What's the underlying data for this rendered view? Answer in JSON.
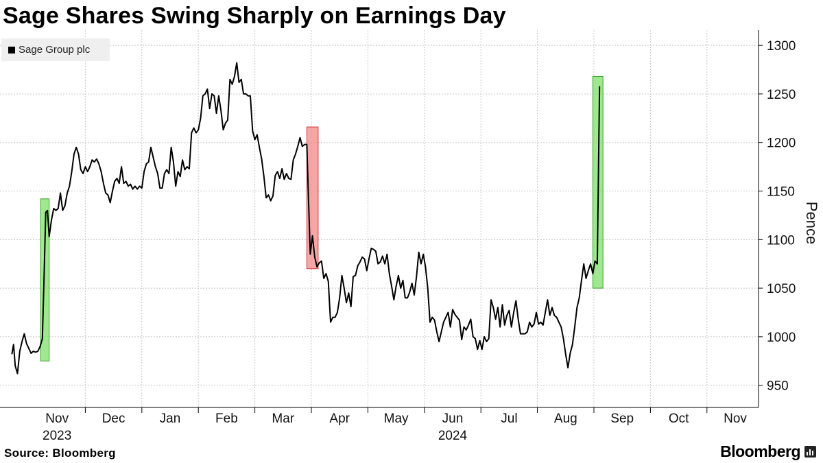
{
  "title": "Sage Shares Swing Sharply on Earnings Day",
  "legend": {
    "label": "Sage Group plc",
    "color": "#000000"
  },
  "source": "Source: Bloomberg",
  "brand": "Bloomberg",
  "brand_icon": "bloomberg-terminal-icon",
  "colors": {
    "line": "#000000",
    "up_highlight": "#7fe06a",
    "down_highlight": "#f28a8a",
    "grid": "#c8c8c8"
  },
  "chart_data": {
    "type": "line",
    "title": "Sage Shares Swing Sharply on Earnings Day",
    "xlabel": "",
    "ylabel": "Pence",
    "ylim": [
      930,
      1310
    ],
    "y_ticks": [
      950,
      1000,
      1050,
      1100,
      1150,
      1200,
      1250,
      1300
    ],
    "grid": true,
    "y_axis_side": "right",
    "legend_position": "top-left",
    "x_tick_labels": [
      {
        "label": "Nov",
        "year": "2023"
      },
      {
        "label": "Dec",
        "year": ""
      },
      {
        "label": "Jan",
        "year": ""
      },
      {
        "label": "Feb",
        "year": ""
      },
      {
        "label": "Mar",
        "year": ""
      },
      {
        "label": "Apr",
        "year": ""
      },
      {
        "label": "May",
        "year": ""
      },
      {
        "label": "Jun",
        "year": "2024"
      },
      {
        "label": "Jul",
        "year": ""
      },
      {
        "label": "Aug",
        "year": ""
      },
      {
        "label": "Sep",
        "year": ""
      },
      {
        "label": "Oct",
        "year": ""
      },
      {
        "label": "Nov",
        "year": ""
      }
    ],
    "series": [
      {
        "name": "Sage Group plc",
        "note": "x = months elapsed since start of Nov 2023 (0 = Nov 1, 2023)",
        "points": [
          [
            -0.3,
            982
          ],
          [
            -0.27,
            992
          ],
          [
            -0.24,
            970
          ],
          [
            -0.2,
            962
          ],
          [
            -0.16,
            985
          ],
          [
            -0.12,
            995
          ],
          [
            -0.08,
            1003
          ],
          [
            -0.04,
            993
          ],
          [
            0.0,
            988
          ],
          [
            0.04,
            983
          ],
          [
            0.08,
            985
          ],
          [
            0.12,
            984
          ],
          [
            0.16,
            985
          ],
          [
            0.2,
            990
          ],
          [
            0.24,
            998
          ],
          [
            0.27,
            1060
          ],
          [
            0.3,
            1128
          ],
          [
            0.33,
            1130
          ],
          [
            0.36,
            1103
          ],
          [
            0.4,
            1120
          ],
          [
            0.44,
            1132
          ],
          [
            0.48,
            1130
          ],
          [
            0.52,
            1132
          ],
          [
            0.56,
            1148
          ],
          [
            0.6,
            1130
          ],
          [
            0.64,
            1135
          ],
          [
            0.68,
            1148
          ],
          [
            0.72,
            1155
          ],
          [
            0.76,
            1170
          ],
          [
            0.8,
            1188
          ],
          [
            0.84,
            1195
          ],
          [
            0.88,
            1188
          ],
          [
            0.92,
            1172
          ],
          [
            0.96,
            1168
          ],
          [
            1.0,
            1175
          ],
          [
            1.04,
            1170
          ],
          [
            1.08,
            1175
          ],
          [
            1.12,
            1182
          ],
          [
            1.16,
            1180
          ],
          [
            1.2,
            1183
          ],
          [
            1.24,
            1178
          ],
          [
            1.28,
            1170
          ],
          [
            1.32,
            1158
          ],
          [
            1.36,
            1148
          ],
          [
            1.4,
            1146
          ],
          [
            1.44,
            1138
          ],
          [
            1.48,
            1150
          ],
          [
            1.52,
            1160
          ],
          [
            1.56,
            1163
          ],
          [
            1.6,
            1158
          ],
          [
            1.64,
            1175
          ],
          [
            1.68,
            1158
          ],
          [
            1.72,
            1160
          ],
          [
            1.76,
            1155
          ],
          [
            1.8,
            1157
          ],
          [
            1.84,
            1152
          ],
          [
            1.88,
            1155
          ],
          [
            1.92,
            1152
          ],
          [
            1.96,
            1155
          ],
          [
            2.0,
            1153
          ],
          [
            2.04,
            1170
          ],
          [
            2.08,
            1178
          ],
          [
            2.12,
            1180
          ],
          [
            2.16,
            1195
          ],
          [
            2.2,
            1185
          ],
          [
            2.24,
            1175
          ],
          [
            2.28,
            1168
          ],
          [
            2.32,
            1153
          ],
          [
            2.36,
            1153
          ],
          [
            2.4,
            1168
          ],
          [
            2.44,
            1172
          ],
          [
            2.48,
            1168
          ],
          [
            2.52,
            1195
          ],
          [
            2.56,
            1180
          ],
          [
            2.6,
            1155
          ],
          [
            2.64,
            1170
          ],
          [
            2.68,
            1165
          ],
          [
            2.72,
            1182
          ],
          [
            2.76,
            1172
          ],
          [
            2.8,
            1175
          ],
          [
            2.84,
            1173
          ],
          [
            2.88,
            1210
          ],
          [
            2.92,
            1215
          ],
          [
            2.96,
            1210
          ],
          [
            3.0,
            1213
          ],
          [
            3.04,
            1225
          ],
          [
            3.08,
            1248
          ],
          [
            3.12,
            1250
          ],
          [
            3.16,
            1255
          ],
          [
            3.2,
            1235
          ],
          [
            3.24,
            1250
          ],
          [
            3.28,
            1248
          ],
          [
            3.32,
            1230
          ],
          [
            3.36,
            1248
          ],
          [
            3.4,
            1233
          ],
          [
            3.44,
            1213
          ],
          [
            3.48,
            1220
          ],
          [
            3.52,
            1223
          ],
          [
            3.56,
            1265
          ],
          [
            3.6,
            1260
          ],
          [
            3.64,
            1268
          ],
          [
            3.68,
            1282
          ],
          [
            3.72,
            1262
          ],
          [
            3.76,
            1265
          ],
          [
            3.8,
            1250
          ],
          [
            3.84,
            1250
          ],
          [
            3.88,
            1248
          ],
          [
            3.92,
            1248
          ],
          [
            3.96,
            1212
          ],
          [
            4.0,
            1203
          ],
          [
            4.04,
            1208
          ],
          [
            4.08,
            1195
          ],
          [
            4.12,
            1183
          ],
          [
            4.16,
            1165
          ],
          [
            4.2,
            1143
          ],
          [
            4.24,
            1146
          ],
          [
            4.28,
            1140
          ],
          [
            4.32,
            1145
          ],
          [
            4.36,
            1166
          ],
          [
            4.4,
            1170
          ],
          [
            4.44,
            1163
          ],
          [
            4.48,
            1173
          ],
          [
            4.52,
            1162
          ],
          [
            4.56,
            1168
          ],
          [
            4.6,
            1163
          ],
          [
            4.64,
            1162
          ],
          [
            4.68,
            1182
          ],
          [
            4.72,
            1188
          ],
          [
            4.76,
            1196
          ],
          [
            4.8,
            1205
          ],
          [
            4.84,
            1196
          ],
          [
            4.88,
            1198
          ],
          [
            4.92,
            1198
          ],
          [
            4.95,
            1140
          ],
          [
            4.98,
            1085
          ],
          [
            5.02,
            1104
          ],
          [
            5.06,
            1082
          ],
          [
            5.1,
            1072
          ],
          [
            5.14,
            1076
          ],
          [
            5.18,
            1078
          ],
          [
            5.22,
            1060
          ],
          [
            5.26,
            1065
          ],
          [
            5.3,
            1057
          ],
          [
            5.34,
            1015
          ],
          [
            5.38,
            1020
          ],
          [
            5.42,
            1020
          ],
          [
            5.46,
            1025
          ],
          [
            5.5,
            1040
          ],
          [
            5.54,
            1063
          ],
          [
            5.58,
            1050
          ],
          [
            5.62,
            1035
          ],
          [
            5.66,
            1045
          ],
          [
            5.7,
            1031
          ],
          [
            5.74,
            1062
          ],
          [
            5.78,
            1063
          ],
          [
            5.82,
            1073
          ],
          [
            5.86,
            1077
          ],
          [
            5.9,
            1082
          ],
          [
            5.94,
            1080
          ],
          [
            5.98,
            1068
          ],
          [
            6.02,
            1080
          ],
          [
            6.06,
            1091
          ],
          [
            6.1,
            1090
          ],
          [
            6.14,
            1088
          ],
          [
            6.18,
            1075
          ],
          [
            6.22,
            1077
          ],
          [
            6.26,
            1083
          ],
          [
            6.3,
            1075
          ],
          [
            6.34,
            1085
          ],
          [
            6.38,
            1065
          ],
          [
            6.42,
            1052
          ],
          [
            6.46,
            1038
          ],
          [
            6.5,
            1052
          ],
          [
            6.54,
            1063
          ],
          [
            6.58,
            1050
          ],
          [
            6.62,
            1058
          ],
          [
            6.66,
            1040
          ],
          [
            6.7,
            1040
          ],
          [
            6.74,
            1046
          ],
          [
            6.78,
            1055
          ],
          [
            6.82,
            1043
          ],
          [
            6.86,
            1062
          ],
          [
            6.9,
            1087
          ],
          [
            6.94,
            1075
          ],
          [
            6.98,
            1085
          ],
          [
            7.02,
            1072
          ],
          [
            7.06,
            1050
          ],
          [
            7.1,
            1015
          ],
          [
            7.14,
            1020
          ],
          [
            7.18,
            1017
          ],
          [
            7.22,
            1005
          ],
          [
            7.26,
            995
          ],
          [
            7.3,
            1005
          ],
          [
            7.34,
            1015
          ],
          [
            7.38,
            1020
          ],
          [
            7.42,
            1025
          ],
          [
            7.46,
            1010
          ],
          [
            7.5,
            1028
          ],
          [
            7.54,
            1023
          ],
          [
            7.58,
            1020
          ],
          [
            7.62,
            1017
          ],
          [
            7.66,
            997
          ],
          [
            7.7,
            1010
          ],
          [
            7.74,
            1007
          ],
          [
            7.78,
            1012
          ],
          [
            7.82,
            1018
          ],
          [
            7.86,
            1000
          ],
          [
            7.9,
            998
          ],
          [
            7.94,
            987
          ],
          [
            7.98,
            996
          ],
          [
            8.02,
            987
          ],
          [
            8.06,
            1000
          ],
          [
            8.1,
            995
          ],
          [
            8.14,
            998
          ],
          [
            8.18,
            1038
          ],
          [
            8.22,
            1030
          ],
          [
            8.26,
            1018
          ],
          [
            8.3,
            1030
          ],
          [
            8.34,
            1010
          ],
          [
            8.38,
            1033
          ],
          [
            8.42,
            1012
          ],
          [
            8.46,
            1022
          ],
          [
            8.5,
            1027
          ],
          [
            8.54,
            1010
          ],
          [
            8.58,
            1025
          ],
          [
            8.62,
            1037
          ],
          [
            8.66,
            1018
          ],
          [
            8.7,
            1003
          ],
          [
            8.74,
            1003
          ],
          [
            8.78,
            1003
          ],
          [
            8.82,
            1005
          ],
          [
            8.86,
            1015
          ],
          [
            8.9,
            1010
          ],
          [
            8.94,
            1013
          ],
          [
            8.98,
            1025
          ],
          [
            9.02,
            1013
          ],
          [
            9.06,
            1015
          ],
          [
            9.1,
            1012
          ],
          [
            9.14,
            1025
          ],
          [
            9.18,
            1038
          ],
          [
            9.22,
            1022
          ],
          [
            9.26,
            1030
          ],
          [
            9.3,
            1022
          ],
          [
            9.34,
            1020
          ],
          [
            9.38,
            1015
          ],
          [
            9.42,
            1010
          ],
          [
            9.46,
            998
          ],
          [
            9.5,
            982
          ],
          [
            9.54,
            968
          ],
          [
            9.58,
            983
          ],
          [
            9.62,
            992
          ],
          [
            9.66,
            1010
          ],
          [
            9.7,
            1030
          ],
          [
            9.74,
            1040
          ],
          [
            9.78,
            1058
          ],
          [
            9.82,
            1075
          ],
          [
            9.86,
            1060
          ],
          [
            9.9,
            1068
          ],
          [
            9.94,
            1075
          ],
          [
            9.98,
            1065
          ],
          [
            10.02,
            1078
          ],
          [
            10.06,
            1075
          ],
          [
            10.1,
            1258
          ]
        ]
      }
    ],
    "highlights": [
      {
        "label": "earnings-nov-2023",
        "direction": "up",
        "x_start": 0.21,
        "x_end": 0.36,
        "y_low": 975,
        "y_high": 1142
      },
      {
        "label": "earnings-may-2024",
        "direction": "down",
        "x_start": 4.92,
        "x_end": 5.12,
        "y_low": 1070,
        "y_high": 1216
      },
      {
        "label": "earnings-nov-2024",
        "direction": "up",
        "x_start": 9.98,
        "x_end": 10.16,
        "y_low": 1050,
        "y_high": 1268
      }
    ]
  }
}
